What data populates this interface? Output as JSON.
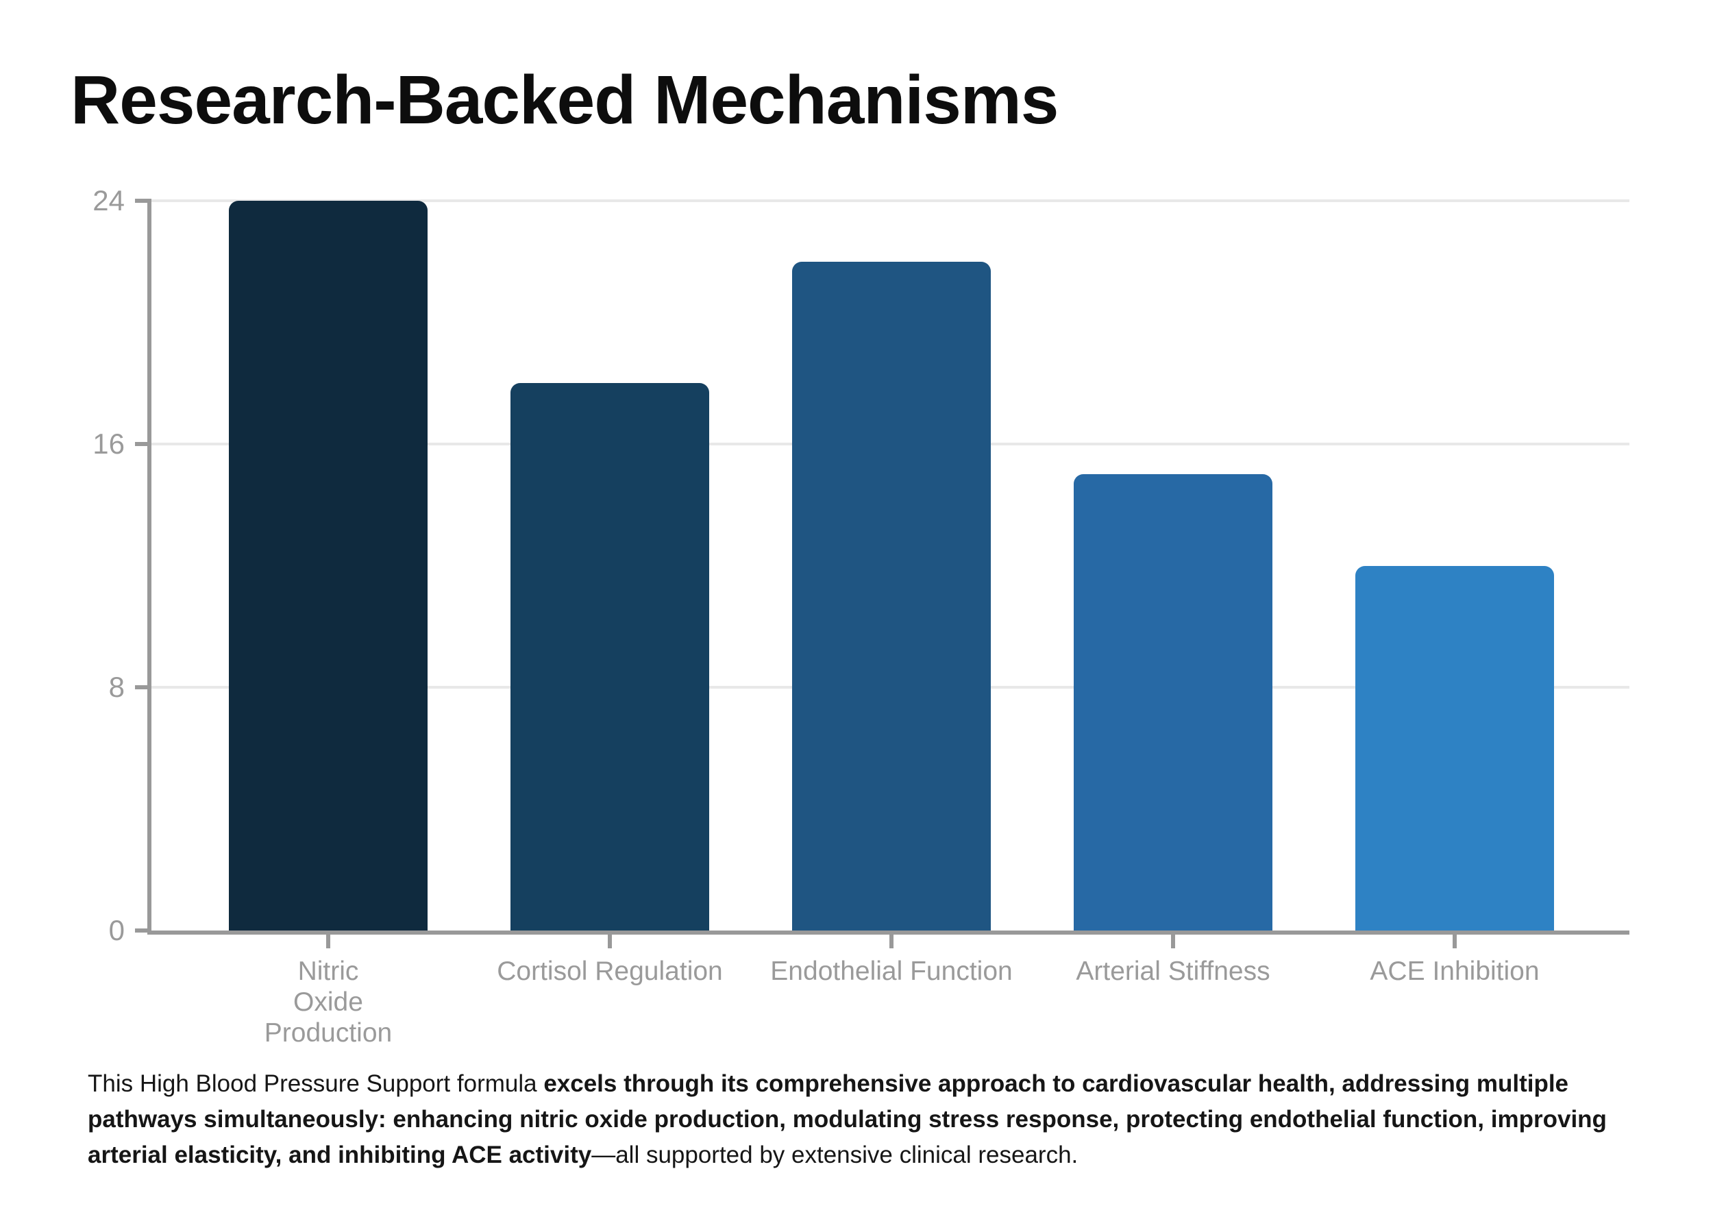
{
  "title": "Research-Backed Mechanisms",
  "chart_data": {
    "type": "bar",
    "title": "Research-Backed Mechanisms",
    "categories": [
      "Nitric\nOxide\nProduction",
      "Cortisol Regulation",
      "Endothelial Function",
      "Arterial Stiffness",
      "ACE Inhibition"
    ],
    "values": [
      24,
      18,
      22,
      15,
      12
    ],
    "bar_colors": [
      "#0f2a3e",
      "#15405f",
      "#1f5582",
      "#2769a5",
      "#2e82c4"
    ],
    "ylim": [
      0,
      24
    ],
    "yticks": [
      0,
      8,
      16,
      24
    ],
    "xlabel": "",
    "ylabel": "",
    "grid": true,
    "legend_position": "none",
    "axis_color": "#999999",
    "gridline_color": "#e8e8e8",
    "tick_label_color": "#9a9a9a"
  },
  "caption": {
    "lead": "This High Blood Pressure Support formula ",
    "emphasis": "excels through its comprehensive approach to cardiovascular health, addressing multiple pathways simultaneously: enhancing nitric oxide production, modulating stress response, protecting endothelial function, improving arterial elasticity, and inhibiting ACE activity",
    "tail": "—all supported by extensive clinical research."
  }
}
